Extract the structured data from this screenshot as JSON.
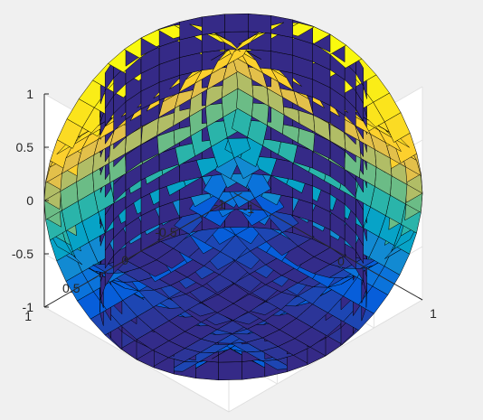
{
  "chart_data": {
    "type": "surface",
    "title": "",
    "xlabel": "",
    "ylabel": "",
    "zlabel": "",
    "xlim": [
      -1,
      1
    ],
    "ylim": [
      -1,
      1
    ],
    "zlim": [
      -1,
      1
    ],
    "grid": true,
    "box": true,
    "view": "3-D default (az -37.5, el 30)",
    "colormap": "parula",
    "x_ticks": [
      "-1",
      "0",
      "1"
    ],
    "y_ticks": [
      "-1",
      "-0.5",
      "0",
      "0.5",
      "1"
    ],
    "z_ticks": [
      "-1",
      "-0.5",
      "0",
      "0.5",
      "1"
    ],
    "surfaces": [
      {
        "shape": "cylinder",
        "axis": "z",
        "radius": 1,
        "equation": "x^2 + y^2 = 1",
        "color": "#352a87"
      },
      {
        "shape": "cylinder",
        "axis": "x",
        "radius": 1,
        "equation": "y^2 + z^2 = 1",
        "color_by": "z"
      },
      {
        "shape": "cylinder",
        "axis": "y",
        "radius": 1,
        "equation": "x^2 + z^2 = 1",
        "color_by": "z"
      }
    ],
    "colors": {
      "axes_background": "#ffffff",
      "figure_background": "#f0f0f0",
      "edge": "#000000",
      "parula_low": "#352a87",
      "parula_high": "#f9fb0e"
    }
  }
}
